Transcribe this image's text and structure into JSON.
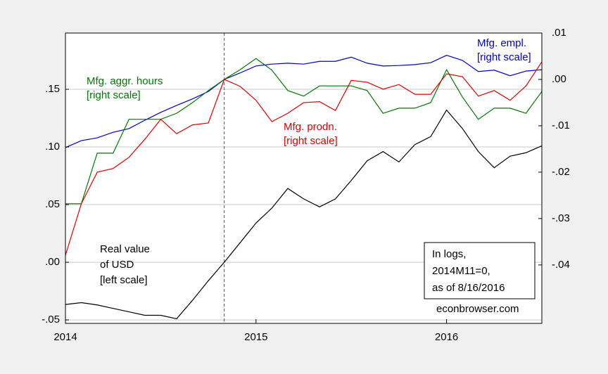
{
  "chart_data": {
    "type": "line",
    "x": [
      2014,
      2014.0833,
      2014.1667,
      2014.25,
      2014.3333,
      2014.4167,
      2014.5,
      2014.5833,
      2014.6667,
      2014.75,
      2014.8333,
      2014.9167,
      2015,
      2015.0833,
      2015.1667,
      2015.25,
      2015.3333,
      2015.4167,
      2015.5,
      2015.5833,
      2015.6667,
      2015.75,
      2015.8333,
      2015.9167,
      2016,
      2016.0833,
      2016.1667,
      2016.25,
      2016.3333,
      2016.4167,
      2016.5
    ],
    "xlim": [
      2014,
      2016.5
    ],
    "xticks": [
      2014,
      2015,
      2016
    ],
    "ylim": [
      -0.053,
      0.1988
    ],
    "yticks": [
      {
        "value": -0.05,
        "label": "-.05"
      },
      {
        "value": 0,
        "label": ".00"
      },
      {
        "value": 0.05,
        "label": ".05"
      },
      {
        "value": 0.1,
        "label": ".10"
      },
      {
        "value": 0.15,
        "label": ".15"
      }
    ],
    "y2lim": [
      -0.0526,
      0.01
    ],
    "y2ticks": [
      {
        "value": -0.04,
        "label": "-.04"
      },
      {
        "value": -0.03,
        "label": "-.03"
      },
      {
        "value": -0.02,
        "label": "-.02"
      },
      {
        "value": -0.01,
        "label": "-.01"
      },
      {
        "value": 0,
        "label": ".00"
      },
      {
        "value": 0.01,
        "label": ".01"
      }
    ],
    "grid": true,
    "vline": 2014.8333,
    "series": [
      {
        "name": "Real value of USD",
        "color": "#000000",
        "axis": "y",
        "values": [
          -0.0366,
          -0.035,
          -0.037,
          -0.04,
          -0.043,
          -0.046,
          -0.046,
          -0.049,
          -0.033,
          -0.016,
          0,
          0.017,
          0.034,
          0.047,
          0.064,
          0.055,
          0.048,
          0.055,
          0.071,
          0.088,
          0.096,
          0.087,
          0.102,
          0.109,
          0.132,
          0.116,
          0.096,
          0.082,
          0.092,
          0.095,
          0.101
        ]
      },
      {
        "name": "Mfg. empl.",
        "color": "#0000cc",
        "axis": "y2",
        "values": [
          -0.0147,
          -0.0132,
          -0.0126,
          -0.0114,
          -0.0106,
          -0.0088,
          -0.0071,
          -0.0056,
          -0.0042,
          -0.0026,
          0,
          0.0014,
          0.0029,
          0.0033,
          0.0035,
          0.0033,
          0.0039,
          0.0039,
          0.0048,
          0.0035,
          0.0029,
          0.003,
          0.0032,
          0.0036,
          0.0052,
          0.0041,
          0.0017,
          0.002,
          0.0008,
          0.0018,
          0.0021
        ]
      },
      {
        "name": "Mfg. aggr. hours",
        "color": "#007a00",
        "axis": "y2",
        "values": [
          -0.0268,
          -0.0268,
          -0.0159,
          -0.0159,
          -0.0086,
          -0.0086,
          -0.0086,
          -0.0073,
          -0.005,
          -0.0024,
          0,
          0.0021,
          0.0045,
          0.002,
          -0.0024,
          -0.0036,
          -0.0014,
          -0.0014,
          -0.0014,
          -0.0024,
          -0.0073,
          -0.0062,
          -0.0062,
          -0.005,
          0.0021,
          -0.0038,
          -0.0086,
          -0.0062,
          -0.0062,
          -0.0073,
          -0.0026
        ]
      },
      {
        "name": "Mfg. prodn.",
        "color": "#e00000",
        "axis": "y2",
        "values": [
          -0.0379,
          -0.0268,
          -0.02,
          -0.0192,
          -0.0168,
          -0.0129,
          -0.0086,
          -0.0117,
          -0.0098,
          -0.0094,
          0,
          -0.0015,
          -0.0045,
          -0.0091,
          -0.0073,
          -0.005,
          -0.0048,
          -0.0067,
          -0.0002,
          -0.0006,
          -0.0021,
          -0.0011,
          -0.0032,
          -0.0032,
          0.0012,
          0.0006,
          -0.0036,
          -0.0024,
          -0.0045,
          -0.0014,
          0.0038
        ]
      }
    ],
    "annotations": [
      {
        "lines": [
          "Mfg. aggr. hours",
          "[right scale]"
        ],
        "color": "#007a00"
      },
      {
        "lines": [
          "Mfg. empl.",
          "[right scale]"
        ],
        "color": "#0000cc"
      },
      {
        "lines": [
          "Mfg. prodn.",
          "[right scale]"
        ],
        "color": "#e00000"
      },
      {
        "lines": [
          "Real value",
          "of USD",
          "[left scale]"
        ],
        "color": "#000000"
      },
      {
        "lines": [
          "In logs,",
          "2014M11=0,",
          "as of 8/16/2016"
        ],
        "color": "#000000",
        "boxed": true
      },
      {
        "lines": [
          "econbrowser.com"
        ],
        "color": "#000000"
      }
    ]
  }
}
